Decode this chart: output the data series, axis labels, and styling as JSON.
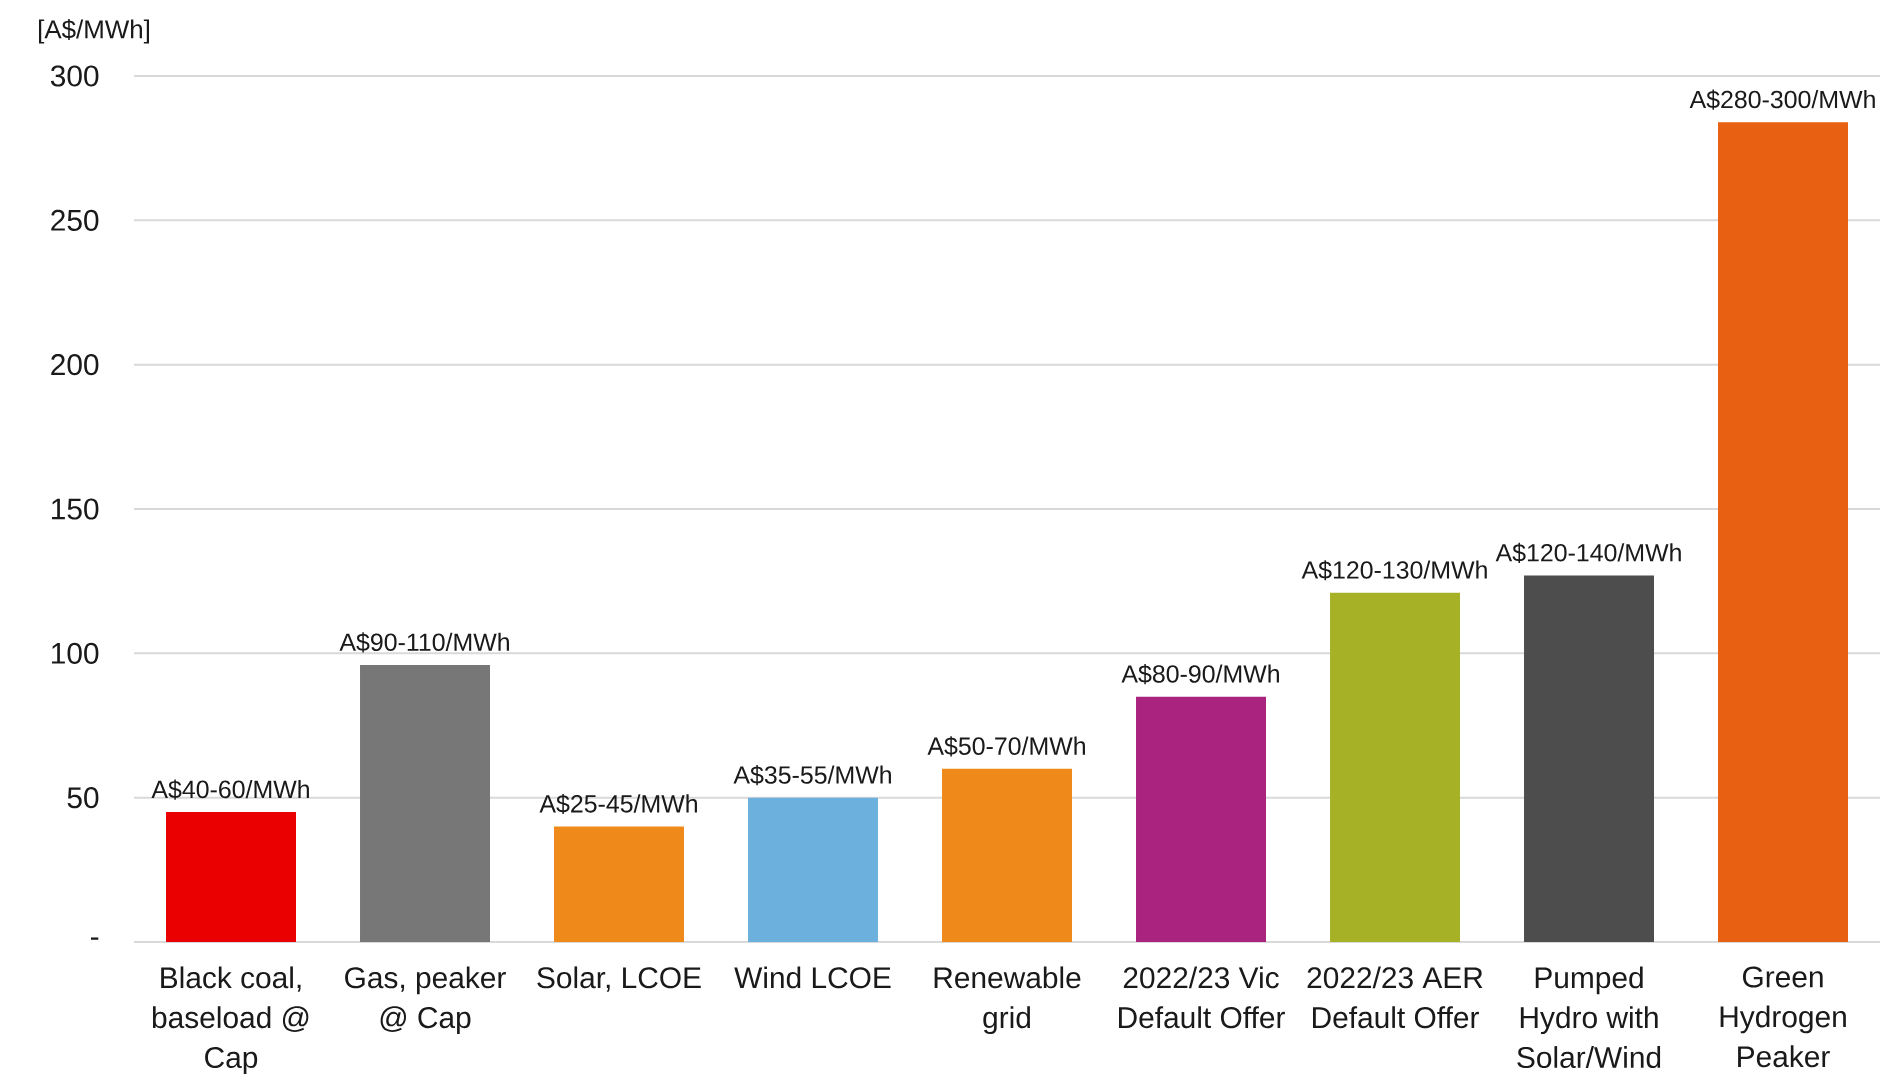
{
  "chart_data": {
    "type": "bar",
    "ylabel": "[A$/MWh]",
    "categories": [
      "Black coal, baseload @ Cap",
      "Gas, peaker @ Cap",
      "Solar, LCOE",
      "Wind LCOE",
      "Renewable grid",
      "2022/23 Vic Default Offer",
      "2022/23 AER Default Offer",
      "Pumped Hydro with Solar/Wind",
      "Green Hydrogen Peaker"
    ],
    "values": [
      45,
      96,
      40,
      50,
      60,
      85,
      121,
      127,
      284
    ],
    "colors": [
      "#ea0000",
      "#777777",
      "#ef8a1a",
      "#6cb1dd",
      "#ef8a1a",
      "#aa237e",
      "#a6b126",
      "#4d4d4d",
      "#e86012"
    ],
    "value_labels": [
      "A$40-60/MWh",
      "A$90-110/MWh",
      "A$25-45/MWh",
      "A$35-55/MWh",
      "A$50-70/MWh",
      "A$80-90/MWh",
      "A$120-130/MWh",
      "A$120-140/MWh",
      "A$280-300/MWh"
    ],
    "ylim": [
      0,
      300
    ],
    "yticks": [
      {
        "value": 0,
        "label": "-"
      },
      50,
      100,
      150,
      200,
      250,
      300
    ],
    "grid": "y"
  }
}
